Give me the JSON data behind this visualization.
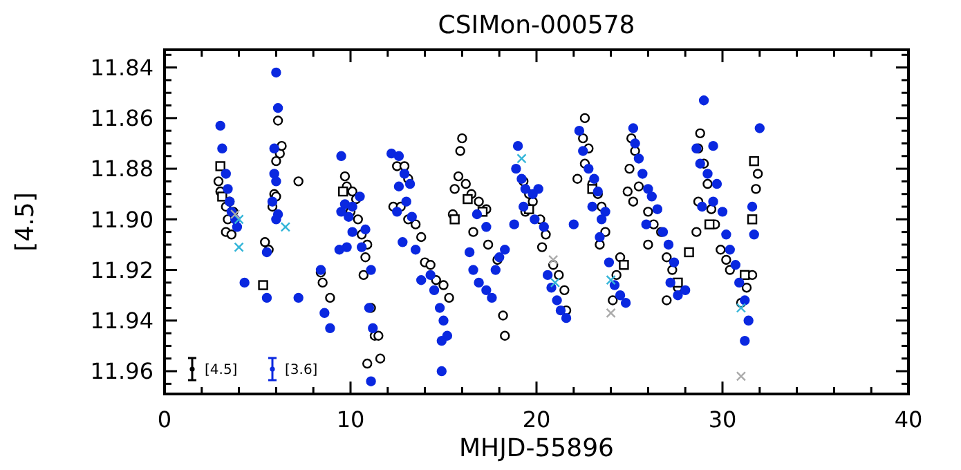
{
  "chart_data": {
    "type": "scatter",
    "title": "CSIMon-000578",
    "xlabel": "MHJD-55896",
    "ylabel": "[4.5]",
    "xlim": [
      0,
      40
    ],
    "ylim": [
      11.969,
      11.833
    ],
    "xticks": [
      0,
      {
        "value": 2,
        "label": null
      },
      {
        "value": 4,
        "label": null
      },
      {
        "value": 6,
        "label": null
      },
      {
        "value": 8,
        "label": null
      },
      10,
      {
        "value": 12,
        "label": null
      },
      {
        "value": 14,
        "label": null
      },
      {
        "value": 16,
        "label": null
      },
      {
        "value": 18,
        "label": null
      },
      20,
      {
        "value": 22,
        "label": null
      },
      {
        "value": 24,
        "label": null
      },
      {
        "value": 26,
        "label": null
      },
      {
        "value": 28,
        "label": null
      },
      30,
      {
        "value": 32,
        "label": null
      },
      {
        "value": 34,
        "label": null
      },
      {
        "value": 36,
        "label": null
      },
      {
        "value": 38,
        "label": null
      },
      40
    ],
    "yticks": [
      {
        "value": 11.835,
        "label": null
      },
      {
        "value": 11.84,
        "label": "11.84"
      },
      {
        "value": 11.845,
        "label": null
      },
      {
        "value": 11.85,
        "label": null
      },
      {
        "value": 11.855,
        "label": null
      },
      {
        "value": 11.86,
        "label": "11.86"
      },
      {
        "value": 11.865,
        "label": null
      },
      {
        "value": 11.87,
        "label": null
      },
      {
        "value": 11.875,
        "label": null
      },
      {
        "value": 11.88,
        "label": "11.88"
      },
      {
        "value": 11.885,
        "label": null
      },
      {
        "value": 11.89,
        "label": null
      },
      {
        "value": 11.895,
        "label": null
      },
      {
        "value": 11.9,
        "label": "11.90"
      },
      {
        "value": 11.905,
        "label": null
      },
      {
        "value": 11.91,
        "label": null
      },
      {
        "value": 11.915,
        "label": null
      },
      {
        "value": 11.92,
        "label": "11.92"
      },
      {
        "value": 11.925,
        "label": null
      },
      {
        "value": 11.93,
        "label": null
      },
      {
        "value": 11.935,
        "label": null
      },
      {
        "value": 11.94,
        "label": "11.94"
      },
      {
        "value": 11.945,
        "label": null
      },
      {
        "value": 11.95,
        "label": null
      },
      {
        "value": 11.955,
        "label": null
      },
      {
        "value": 11.96,
        "label": "11.96"
      },
      {
        "value": 11.965,
        "label": null
      }
    ],
    "legend": "bottom left",
    "series": [
      {
        "name": "[4.5]",
        "color": "#000000",
        "marker": "circle",
        "x": [
          2.9,
          3.0,
          3.3,
          3.5,
          3.7,
          3.3,
          3.6,
          3.4,
          6.1,
          6.0,
          6.2,
          6.3,
          5.9,
          5.8,
          6.0,
          5.4,
          5.6,
          7.2,
          8.4,
          8.5,
          8.9,
          9.7,
          9.8,
          10.1,
          10.3,
          10.0,
          10.4,
          10.6,
          10.9,
          10.8,
          10.7,
          11.1,
          11.3,
          11.5,
          10.9,
          11.6,
          12.5,
          12.9,
          13.1,
          12.3,
          12.7,
          13.1,
          13.5,
          13.8,
          14.0,
          14.3,
          14.6,
          15.0,
          15.3,
          15.9,
          16.0,
          15.6,
          15.8,
          16.2,
          16.5,
          16.9,
          17.3,
          15.5,
          16.6,
          17.9,
          17.4,
          18.2,
          18.3,
          19.3,
          19.6,
          19.8,
          19.4,
          20.2,
          20.5,
          20.3,
          20.9,
          21.2,
          21.5,
          21.6,
          22.6,
          22.5,
          22.8,
          22.6,
          22.2,
          23.0,
          23.3,
          23.5,
          23.7,
          23.4,
          24.3,
          24.5,
          24.1,
          25.1,
          25.3,
          25.0,
          24.9,
          25.2,
          25.5,
          26.0,
          26.3,
          26.0,
          26.7,
          27.0,
          27.3,
          27.6,
          27.0,
          28.8,
          28.7,
          29.0,
          29.2,
          28.7,
          28.6,
          29.4,
          29.6,
          29.9,
          30.2,
          30.4,
          31.3,
          31.0,
          31.9,
          31.8,
          31.6
        ],
        "values": [
          11.885,
          11.889,
          11.895,
          11.893,
          11.897,
          11.905,
          11.906,
          11.9,
          11.861,
          11.877,
          11.874,
          11.871,
          11.89,
          11.895,
          11.891,
          11.909,
          11.912,
          11.885,
          11.921,
          11.925,
          11.931,
          11.883,
          11.887,
          11.889,
          11.892,
          11.897,
          11.9,
          11.906,
          11.91,
          11.915,
          11.922,
          11.935,
          11.946,
          11.946,
          11.957,
          11.955,
          11.879,
          11.879,
          11.884,
          11.895,
          11.895,
          11.9,
          11.902,
          11.907,
          11.917,
          11.918,
          11.924,
          11.926,
          11.931,
          11.873,
          11.868,
          11.888,
          11.883,
          11.886,
          11.89,
          11.893,
          11.896,
          11.898,
          11.905,
          11.916,
          11.91,
          11.938,
          11.946,
          11.885,
          11.89,
          11.893,
          11.897,
          11.9,
          11.906,
          11.911,
          11.918,
          11.922,
          11.928,
          11.936,
          11.86,
          11.868,
          11.872,
          11.878,
          11.884,
          11.886,
          11.89,
          11.895,
          11.905,
          11.91,
          11.922,
          11.915,
          11.932,
          11.868,
          11.873,
          11.88,
          11.889,
          11.893,
          11.887,
          11.897,
          11.902,
          11.91,
          11.905,
          11.915,
          11.92,
          11.927,
          11.932,
          11.866,
          11.872,
          11.878,
          11.886,
          11.893,
          11.905,
          11.896,
          11.902,
          11.912,
          11.916,
          11.92,
          11.927,
          11.933,
          11.882,
          11.888,
          11.922
        ]
      },
      {
        "color": "#000000",
        "marker": "square",
        "x": [
          3.0,
          3.1,
          5.3,
          9.6,
          16.3,
          17.1,
          15.6,
          19.6,
          23.0,
          24.7,
          28.2,
          27.6,
          29.3,
          31.7,
          31.6,
          31.2
        ],
        "values": [
          11.879,
          11.891,
          11.926,
          11.889,
          11.892,
          11.897,
          11.9,
          11.896,
          11.888,
          11.918,
          11.913,
          11.925,
          11.902,
          11.877,
          11.9,
          11.922
        ]
      },
      {
        "name": "[3.6]",
        "color": "#0a28e0",
        "marker": "circle",
        "x": [
          3.0,
          3.1,
          3.3,
          3.4,
          3.5,
          3.6,
          3.8,
          3.9,
          4.3,
          6.0,
          6.1,
          5.9,
          5.9,
          6.0,
          5.8,
          6.1,
          6.0,
          5.5,
          5.5,
          7.2,
          8.4,
          8.6,
          8.9,
          9.5,
          9.7,
          9.5,
          9.9,
          10.1,
          10.5,
          9.4,
          10.1,
          9.8,
          10.8,
          10.6,
          11.1,
          11.0,
          11.2,
          11.1,
          12.2,
          12.6,
          12.9,
          13.2,
          12.6,
          13.0,
          12.5,
          13.3,
          12.8,
          13.5,
          13.8,
          14.3,
          14.5,
          14.8,
          15.0,
          15.2,
          14.9,
          14.9,
          16.4,
          16.6,
          16.9,
          17.3,
          17.6,
          16.8,
          17.3,
          17.8,
          18.0,
          18.3,
          19.0,
          18.9,
          19.2,
          19.4,
          19.8,
          20.1,
          19.3,
          19.9,
          18.8,
          20.4,
          20.6,
          20.8,
          21.1,
          21.3,
          21.6,
          22.0,
          22.3,
          22.5,
          22.8,
          23.1,
          23.3,
          23.0,
          23.5,
          23.7,
          23.4,
          23.9,
          24.2,
          24.5,
          24.8,
          25.2,
          25.3,
          25.5,
          25.7,
          26.0,
          26.2,
          26.5,
          25.9,
          26.8,
          27.1,
          27.4,
          27.2,
          27.6,
          28.0,
          29.0,
          28.6,
          28.8,
          29.2,
          29.5,
          29.7,
          28.9,
          29.5,
          30.0,
          30.2,
          30.4,
          30.7,
          30.9,
          31.2,
          31.4,
          31.2,
          31.6,
          31.7,
          32.0
        ],
        "values": [
          11.863,
          11.872,
          11.882,
          11.888,
          11.893,
          11.897,
          11.9,
          11.903,
          11.925,
          11.842,
          11.856,
          11.872,
          11.882,
          11.885,
          11.893,
          11.898,
          11.9,
          11.913,
          11.931,
          11.931,
          11.92,
          11.937,
          11.943,
          11.875,
          11.894,
          11.897,
          11.899,
          11.895,
          11.891,
          11.912,
          11.905,
          11.911,
          11.904,
          11.911,
          11.92,
          11.935,
          11.943,
          11.964,
          11.874,
          11.875,
          11.882,
          11.886,
          11.887,
          11.893,
          11.897,
          11.899,
          11.909,
          11.912,
          11.924,
          11.922,
          11.928,
          11.935,
          11.94,
          11.946,
          11.948,
          11.96,
          11.913,
          11.92,
          11.925,
          11.928,
          11.931,
          11.898,
          11.903,
          11.92,
          11.915,
          11.912,
          11.871,
          11.88,
          11.884,
          11.888,
          11.89,
          11.888,
          11.895,
          11.9,
          11.902,
          11.903,
          11.922,
          11.927,
          11.932,
          11.936,
          11.939,
          11.902,
          11.865,
          11.873,
          11.88,
          11.884,
          11.889,
          11.895,
          11.9,
          11.897,
          11.907,
          11.917,
          11.926,
          11.93,
          11.933,
          11.864,
          11.87,
          11.876,
          11.882,
          11.888,
          11.891,
          11.896,
          11.902,
          11.905,
          11.91,
          11.917,
          11.925,
          11.93,
          11.928,
          11.853,
          11.872,
          11.878,
          11.882,
          11.871,
          11.886,
          11.895,
          11.893,
          11.897,
          11.906,
          11.912,
          11.918,
          11.925,
          11.932,
          11.94,
          11.948,
          11.895,
          11.906,
          11.864
        ]
      },
      {
        "color": "#33b5d8",
        "marker": "cross",
        "x": [
          4.0,
          4.0,
          6.5,
          19.2,
          21.0,
          24.0,
          31.0
        ],
        "values": [
          11.9,
          11.911,
          11.903,
          11.876,
          11.925,
          11.924,
          11.935
        ]
      },
      {
        "color": "#aaaaaa",
        "marker": "cross",
        "x": [
          3.8,
          20.9,
          24.0,
          31.0
        ],
        "values": [
          11.898,
          11.916,
          11.937,
          11.962
        ]
      }
    ]
  }
}
